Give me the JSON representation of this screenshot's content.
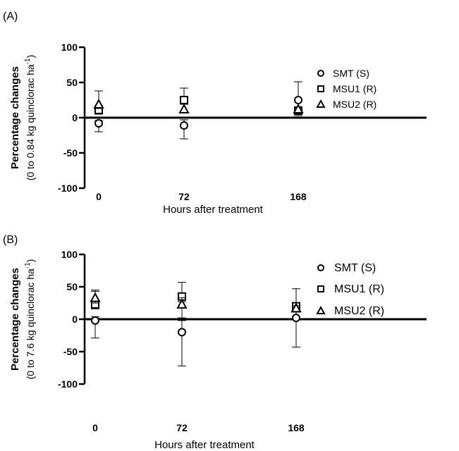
{
  "chart_data": [
    {
      "panel_label": "(A)",
      "type": "scatter",
      "xlabel": "Hours after treatment",
      "ylabel_main": "Percentage changes",
      "ylabel_sub": "(0 to 0.84 kg quinclorac ha",
      "ylabel_sup": "-1",
      "ylabel_end": ")",
      "x": [
        0,
        72,
        168
      ],
      "x_ticks": [
        "0",
        "72",
        "168"
      ],
      "y_ticks": [
        "100",
        "50",
        "0",
        "-50",
        "-100"
      ],
      "ylim": [
        -100,
        100
      ],
      "legend_position": "right",
      "series": [
        {
          "name": "SMT (S)",
          "marker": "circle",
          "values": [
            -8,
            -11,
            25
          ],
          "err_low": [
            12,
            19,
            12
          ],
          "err_high": [
            4,
            8,
            26
          ]
        },
        {
          "name": "MSU1 (R)",
          "marker": "square",
          "values": [
            11,
            25,
            10
          ],
          "err_low": [
            6,
            6,
            7
          ],
          "err_high": [
            6,
            17,
            4
          ]
        },
        {
          "name": "MSU2 (R)",
          "marker": "triangle",
          "values": [
            19,
            12,
            12
          ],
          "err_low": [
            6,
            5,
            5
          ],
          "err_high": [
            19,
            8,
            3
          ]
        }
      ]
    },
    {
      "panel_label": "(B)",
      "type": "scatter",
      "xlabel": "Hours after treatment",
      "ylabel_main": "Percentage changes",
      "ylabel_sub": "(0 to 7.6 kg quinclorac ha",
      "ylabel_sup": "-1",
      "ylabel_end": ")",
      "x": [
        0,
        72,
        168
      ],
      "x_ticks": [
        "0",
        "72",
        "168"
      ],
      "y_ticks": [
        "100",
        "50",
        "0",
        "-50",
        "-100"
      ],
      "ylim": [
        -100,
        100
      ],
      "legend_position": "right",
      "series": [
        {
          "name": "SMT (S)",
          "marker": "circle",
          "values": [
            -2,
            -20,
            2
          ],
          "err_low": [
            27,
            52,
            45
          ],
          "err_high": [
            6,
            22,
            17
          ]
        },
        {
          "name": "MSU1 (R)",
          "marker": "square",
          "values": [
            23,
            35,
            20
          ],
          "err_low": [
            7,
            8,
            6
          ],
          "err_high": [
            22,
            22,
            27
          ]
        },
        {
          "name": "MSU2 (R)",
          "marker": "triangle",
          "values": [
            33,
            23,
            17
          ],
          "err_low": [
            8,
            25,
            6
          ],
          "err_high": [
            10,
            10,
            4
          ]
        }
      ]
    }
  ]
}
